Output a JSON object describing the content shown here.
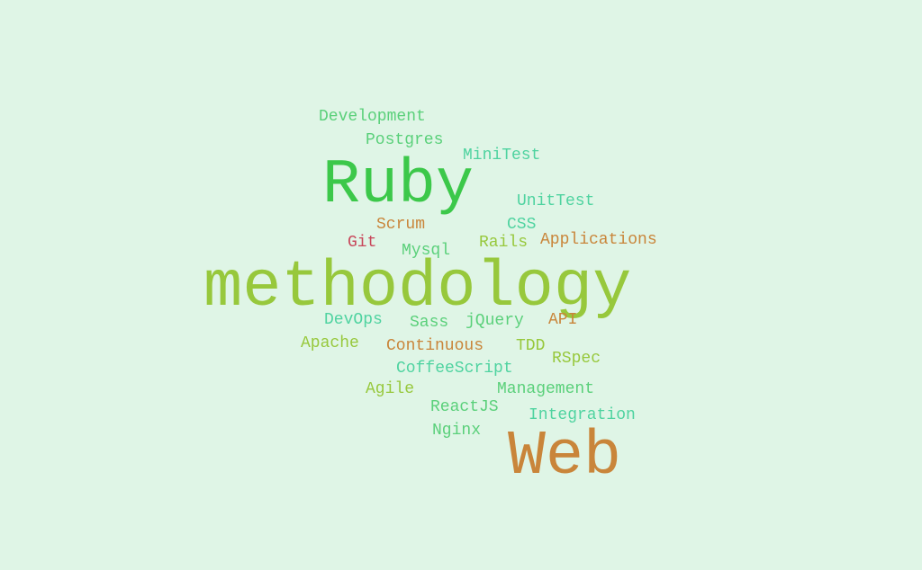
{
  "background_color": "#dff5e6",
  "colors": {
    "green": "#3cc84a",
    "lime": "#97c83c",
    "teal": "#4fd3a0",
    "orange": "#c9853a",
    "light_green": "#5ad07a",
    "red": "#c8465a"
  },
  "words": {
    "development": "Development",
    "postgres": "Postgres",
    "minitest": "MiniTest",
    "ruby": "Ruby",
    "unittest": "UnitTest",
    "scrum": "Scrum",
    "css": "CSS",
    "git": "Git",
    "mysql": "Mysql",
    "rails": "Rails",
    "applications": "Applications",
    "methodology": "methodology",
    "devops": "DevOps",
    "sass": "Sass",
    "jquery": "jQuery",
    "api": "API",
    "apache": "Apache",
    "continuous": "Continuous",
    "tdd": "TDD",
    "rspec": "RSpec",
    "coffeescript": "CoffeeScript",
    "agile": "Agile",
    "management": "Management",
    "reactjs": "ReactJS",
    "integration": "Integration",
    "nginx": "Nginx",
    "web": "Web"
  }
}
